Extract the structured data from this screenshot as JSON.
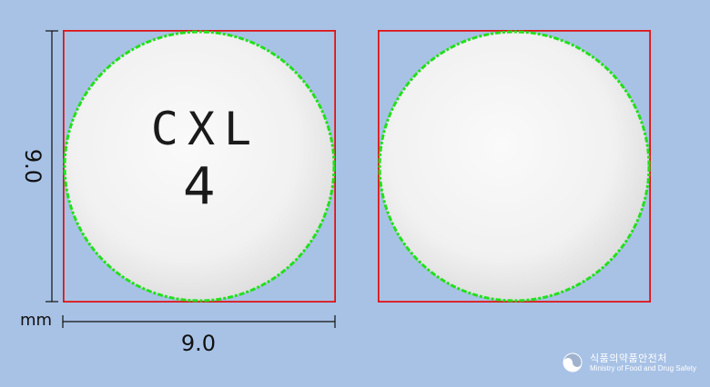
{
  "image": {
    "background_color": "#a8c2e6",
    "bounding_box_color": "#e01010",
    "contour_color": "#22e01a",
    "pill_color": "#f4f4f4",
    "pill_shadow_color": "#dcdcdc",
    "front": {
      "imprint_line1": "CXL",
      "imprint_line2": "4"
    },
    "back": {
      "imprint": ""
    },
    "dimensions": {
      "height_label": "9.0",
      "width_label": "9.0",
      "unit": "mm"
    },
    "logo": {
      "icon": "taegeuk-icon",
      "name_korean": "식품의약품안전처",
      "name_english": "Ministry of Food and Drug Safety"
    }
  }
}
